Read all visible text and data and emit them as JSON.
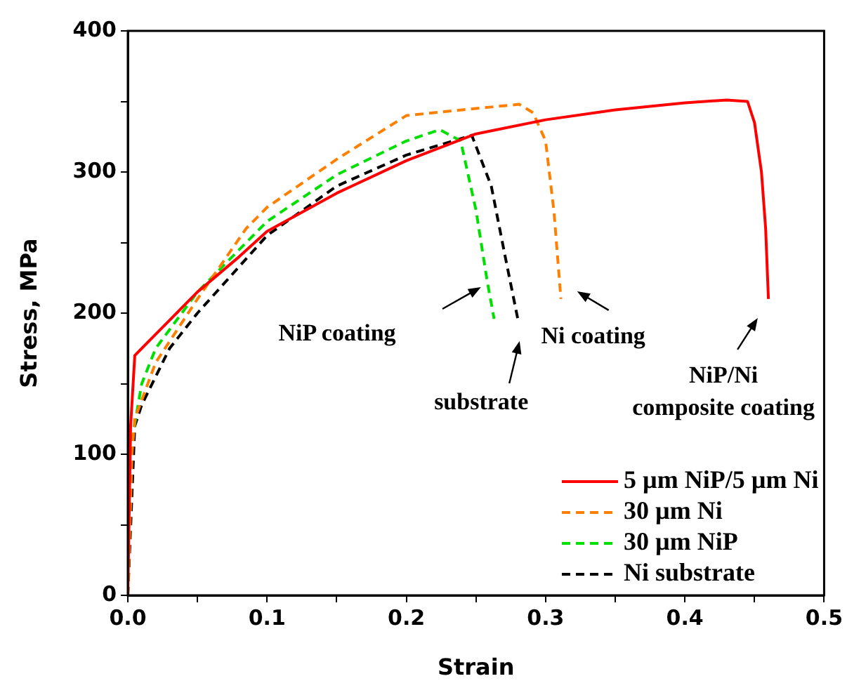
{
  "chart_data": {
    "type": "line",
    "xlabel": "Strain",
    "ylabel": "Stress, MPa",
    "xlim": [
      0,
      0.5
    ],
    "ylim": [
      0,
      400
    ],
    "xticks": [
      {
        "value": 0,
        "label": "0.0"
      },
      {
        "value": 0.05,
        "label": null
      },
      0.1,
      {
        "value": 0.15,
        "label": null
      },
      0.2,
      {
        "value": 0.25,
        "label": null
      },
      0.3,
      {
        "value": 0.35,
        "label": null
      },
      0.4,
      {
        "value": 0.45,
        "label": null
      },
      0.5
    ],
    "yticks": [
      0,
      {
        "value": 50,
        "label": null
      },
      100,
      {
        "value": 150,
        "label": null
      },
      200,
      {
        "value": 250,
        "label": null
      },
      300,
      {
        "value": 350,
        "label": null
      },
      400
    ],
    "grid": false,
    "legend": "bottom right",
    "marker": "none",
    "series": [
      {
        "name": "5 µm NiP/5 µm Ni",
        "color": "#ff0000",
        "line_style": "solid",
        "x": [
          0,
          0.002,
          0.005,
          0.01,
          0.02,
          0.03,
          0.05,
          0.08,
          0.1,
          0.15,
          0.2,
          0.25,
          0.3,
          0.35,
          0.4,
          0.43,
          0.445,
          0.45,
          0.455,
          0.458,
          0.46
        ],
        "values": [
          0,
          120,
          170,
          175,
          185,
          195,
          215,
          240,
          258,
          285,
          308,
          327,
          337,
          344,
          349,
          351,
          350,
          335,
          300,
          260,
          210
        ]
      },
      {
        "name": "30 µm Ni",
        "color": "#ff8000",
        "line_style": "dashed",
        "x": [
          0,
          0.003,
          0.005,
          0.02,
          0.05,
          0.085,
          0.1,
          0.15,
          0.2,
          0.25,
          0.281,
          0.291,
          0.3,
          0.306,
          0.311
        ],
        "values": [
          0,
          100,
          125,
          165,
          210,
          260,
          275,
          309,
          340,
          345,
          348,
          342,
          322,
          272,
          210
        ]
      },
      {
        "name": "30 µm NiP",
        "color": "#00e000",
        "line_style": "dashed",
        "x": [
          0,
          0.003,
          0.01,
          0.02,
          0.05,
          0.1,
          0.15,
          0.2,
          0.224,
          0.239,
          0.25,
          0.258,
          0.263
        ],
        "values": [
          0,
          110,
          150,
          175,
          215,
          265,
          298,
          322,
          330,
          322,
          273,
          223,
          196
        ]
      },
      {
        "name": "Ni substrate",
        "color": "#000000",
        "line_style": "dashed",
        "x": [
          0,
          0.005,
          0.01,
          0.03,
          0.05,
          0.1,
          0.15,
          0.2,
          0.247,
          0.261,
          0.271,
          0.28
        ],
        "values": [
          0,
          120,
          135,
          175,
          200,
          255,
          290,
          312,
          326,
          290,
          240,
          196
        ]
      }
    ],
    "annotations": [
      "NiP coating",
      {
        "text": "Ni coating",
        "x": 0.311,
        "y": 210
      },
      {
        "text": "substrate",
        "x": 0.28,
        "y": 196
      },
      {
        "text": "NiP/Ni\ncomposite coating",
        "x": 0.46,
        "y": 210
      }
    ]
  }
}
